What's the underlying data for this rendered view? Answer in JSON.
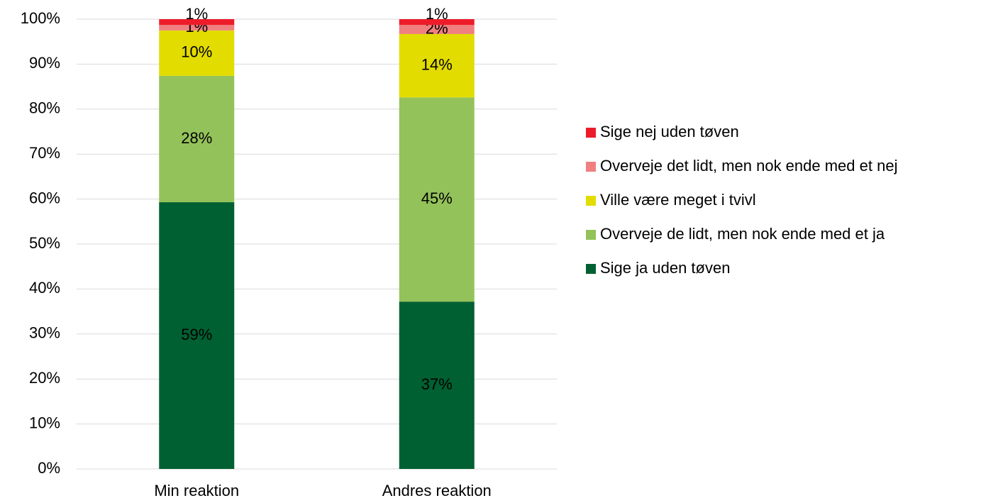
{
  "chart_data": {
    "type": "stacked_bar",
    "categories": [
      "Min reaktion",
      "Andres reaktion"
    ],
    "series": [
      {
        "name": "Sige ja uden tøven",
        "color": "#006032",
        "label_color": "#ffffff",
        "values": [
          59.3,
          37.2
        ],
        "value_labels": [
          "59%",
          "37%"
        ]
      },
      {
        "name": "Overveje de lidt, men nok ende med et ja",
        "color": "#94c25a",
        "label_color": "#ffffff",
        "values": [
          28.1,
          45.4
        ],
        "value_labels": [
          "28%",
          "45%"
        ]
      },
      {
        "name": "Ville være meget i tvivl",
        "color": "#e2dc00",
        "label_color": "#000000",
        "values": [
          10.1,
          14.1
        ],
        "value_labels": [
          "10%",
          "14%"
        ]
      },
      {
        "name": "Overveje det lidt, men nok ende med et nej",
        "color": "#f07f80",
        "label_color": "#ffffff",
        "values": [
          1.2,
          2.0
        ],
        "value_labels": [
          "1%",
          "2%"
        ]
      },
      {
        "name": "Sige nej uden tøven",
        "color": "#ed1c2a",
        "label_color": "#000000",
        "values": [
          1.3,
          1.3
        ],
        "value_labels": [
          "1%",
          "1%"
        ]
      }
    ],
    "ylim": [
      0,
      100
    ],
    "yticks": [
      {
        "value": 0,
        "label": "0%"
      },
      {
        "value": 10,
        "label": "10%"
      },
      {
        "value": 20,
        "label": "20%"
      },
      {
        "value": 30,
        "label": "30%"
      },
      {
        "value": 40,
        "label": "40%"
      },
      {
        "value": 50,
        "label": "50%"
      },
      {
        "value": 60,
        "label": "60%"
      },
      {
        "value": 70,
        "label": "70%"
      },
      {
        "value": 80,
        "label": "80%"
      },
      {
        "value": 90,
        "label": "90%"
      },
      {
        "value": 100,
        "label": "100%"
      }
    ],
    "grid": true,
    "legend": "right"
  }
}
